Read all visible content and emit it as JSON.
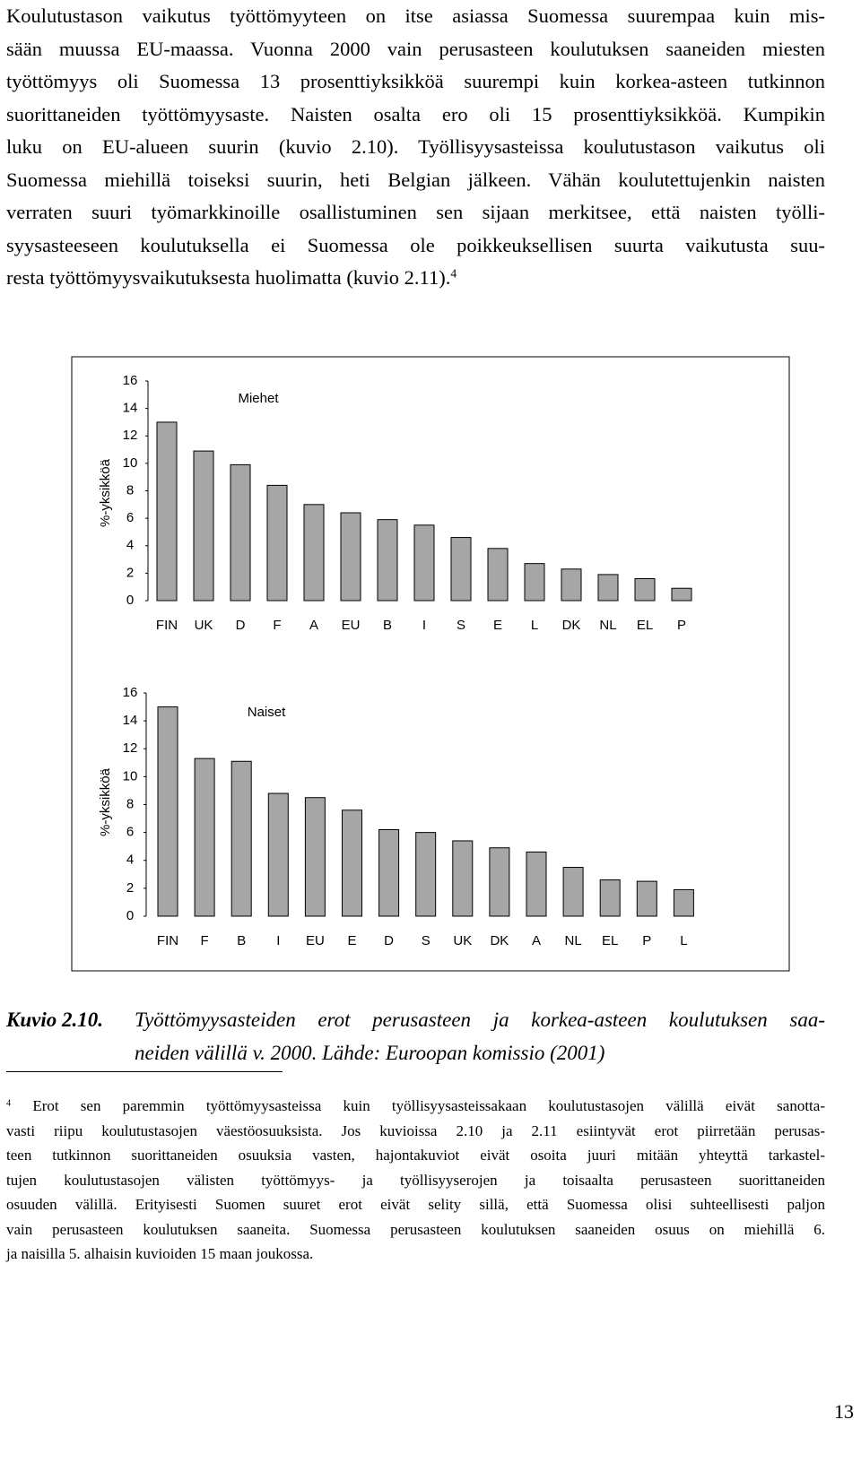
{
  "body": {
    "lines": [
      "Koulutustason vaikutus työttömyyteen on itse asiassa Suomessa suurempaa kuin mis-",
      "sään muussa EU-maassa. Vuonna 2000 vain perusasteen koulutuksen saaneiden miesten",
      "työttömyys oli Suomessa 13 prosenttiyksikköä suurempi kuin korkea-asteen tutkinnon",
      "suorittaneiden työttömyysaste. Naisten osalta ero oli 15 prosenttiyksikköä. Kumpikin",
      "luku on EU-alueen suurin (kuvio 2.10). Työllisyysasteissa koulutustason vaikutus oli",
      "Suomessa miehillä toiseksi suurin, heti Belgian jälkeen. Vähän koulutettujenkin naisten",
      "verraten suuri työmarkkinoille osallistuminen sen sijaan merkitsee, että naisten työlli-",
      "syysasteeseen koulutuksella ei Suomessa ole poikkeuksellisen suurta vaikutusta suu-",
      "resta työttömyysvaikutuksesta huolimatta (kuvio 2.11)."
    ],
    "footnote_ref": "4"
  },
  "chart_data": [
    {
      "type": "bar",
      "title": "Miehet",
      "y_label": "%-yksikköä",
      "categories": [
        "FIN",
        "UK",
        "D",
        "F",
        "A",
        "EU",
        "B",
        "I",
        "S",
        "E",
        "L",
        "DK",
        "NL",
        "EL",
        "P"
      ],
      "values": [
        13.0,
        10.9,
        9.9,
        8.4,
        7.0,
        6.4,
        5.9,
        5.5,
        4.6,
        3.8,
        2.7,
        2.3,
        1.9,
        1.6,
        0.9
      ],
      "color": "#a6a6a6",
      "ylim": [
        0,
        16
      ],
      "yticks": [
        0,
        2,
        4,
        6,
        8,
        10,
        12,
        14,
        16
      ]
    },
    {
      "type": "bar",
      "title": "Naiset",
      "y_label": "%-yksikköä",
      "categories": [
        "FIN",
        "F",
        "B",
        "I",
        "EU",
        "E",
        "D",
        "S",
        "UK",
        "DK",
        "A",
        "NL",
        "EL",
        "P",
        "L"
      ],
      "values": [
        15.0,
        11.3,
        11.1,
        8.8,
        8.5,
        7.6,
        6.2,
        6.0,
        5.4,
        4.9,
        4.6,
        3.5,
        2.6,
        2.5,
        1.9
      ],
      "color": "#a6a6a6",
      "ylim": [
        0,
        16
      ],
      "yticks": [
        0,
        2,
        4,
        6,
        8,
        10,
        12,
        14,
        16
      ]
    }
  ],
  "caption": {
    "label": "Kuvio 2.10.",
    "lines": [
      "Työttömyysasteiden erot perusasteen ja korkea-asteen koulutuksen saa-",
      "neiden välillä v. 2000. Lähde: Euroopan komissio (2001)"
    ]
  },
  "footnote": {
    "marker": "4",
    "lines": [
      "Erot sen paremmin työttömyysasteissa kuin työllisyysasteissakaan koulutustasojen välillä eivät sanotta-",
      "vasti riipu koulutustasojen väestöosuuksista. Jos kuvioissa 2.10 ja 2.11 esiintyvät erot piirretään perusas-",
      "teen tutkinnon suorittaneiden osuuksia vasten, hajontakuviot eivät osoita juuri mitään yhteyttä tarkastel-",
      "tujen koulutustasojen välisten työttömyys- ja työllisyyserojen ja toisaalta perusasteen suorittaneiden",
      "osuuden välillä. Erityisesti Suomen suuret erot eivät selity sillä, että Suomessa olisi suhteellisesti paljon",
      "vain perusasteen koulutuksen saaneita. Suomessa perusasteen koulutuksen saaneiden osuus on miehillä 6.",
      "ja naisilla 5. alhaisin kuvioiden 15 maan joukossa."
    ]
  },
  "page_number": "13"
}
